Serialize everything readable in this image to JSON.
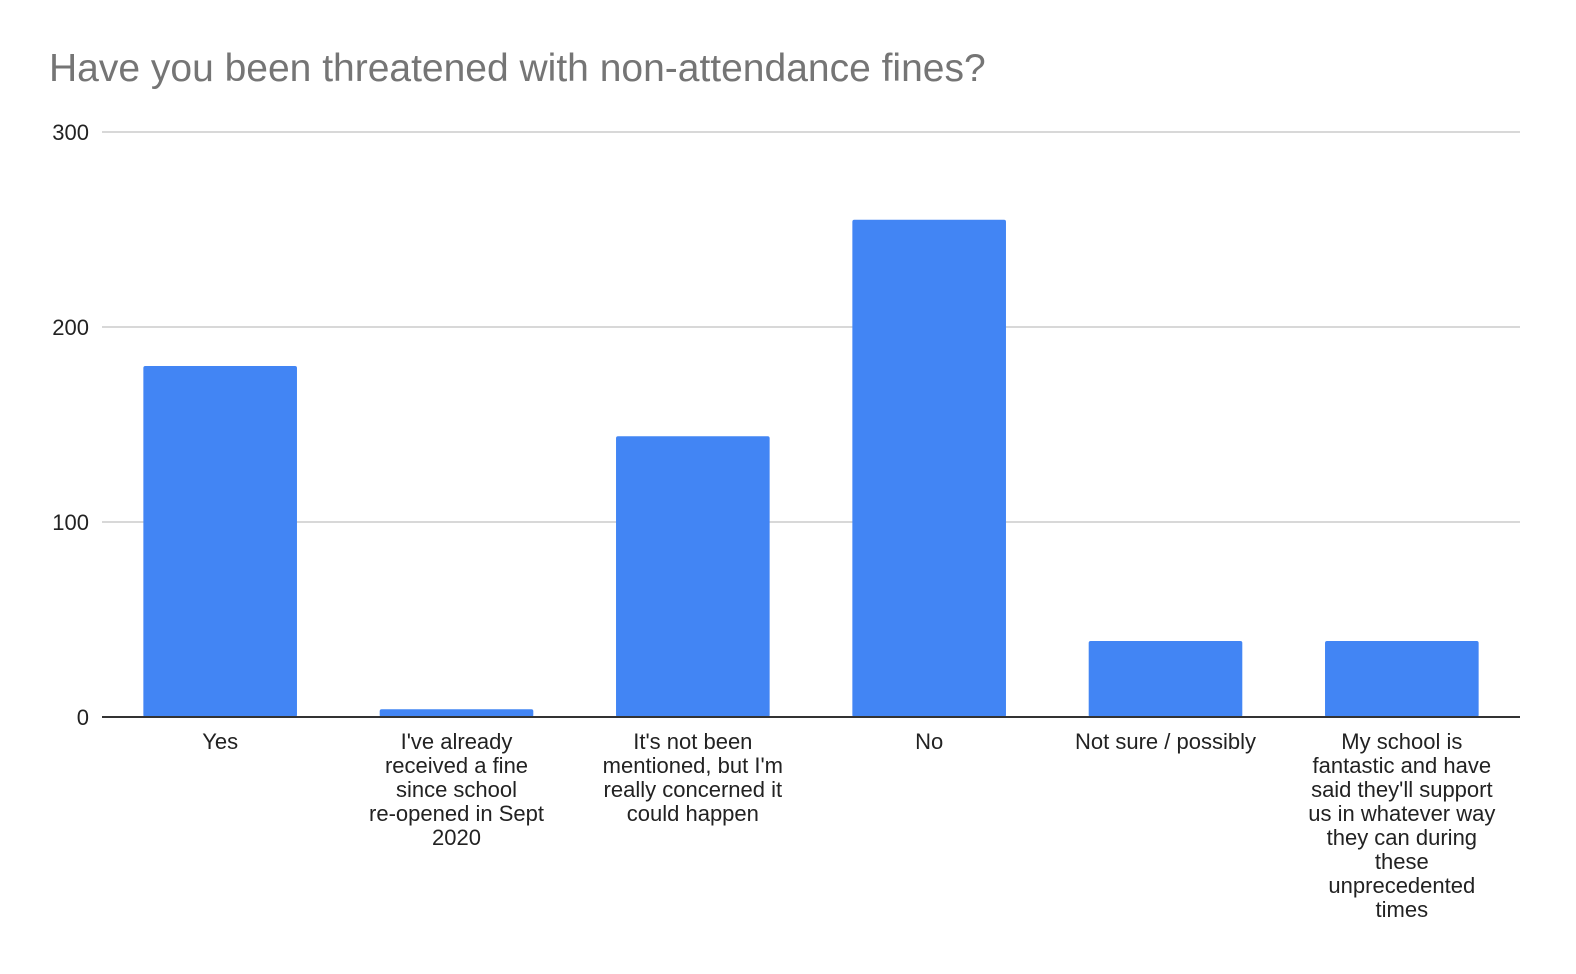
{
  "chart_data": {
    "type": "bar",
    "title": "Have you been threatened with non-attendance fines?",
    "xlabel": "",
    "ylabel": "",
    "categories": [
      "Yes",
      "I've already received a fine since school re-opened in Sept 2020",
      "It's not been mentioned, but I'm really concerned it could happen",
      "No",
      "Not sure / possibly",
      "My school is fantastic and have said they'll support us in whatever way they can during these unprecedented times"
    ],
    "category_label_lines": [
      [
        "Yes"
      ],
      [
        "I've already",
        "received a fine",
        "since school",
        "re-opened in Sept",
        "2020"
      ],
      [
        "It's not been",
        "mentioned, but I'm",
        "really concerned it",
        "could happen"
      ],
      [
        "No"
      ],
      [
        "Not sure / possibly"
      ],
      [
        "My school is",
        "fantastic and have",
        "said they'll support",
        "us in whatever way",
        "they can during",
        "these",
        "unprecedented",
        "times"
      ]
    ],
    "values": [
      180,
      4,
      144,
      255,
      39,
      39
    ],
    "ylim": [
      0,
      300
    ],
    "yticks": [
      0,
      100,
      200,
      300
    ],
    "grid": true,
    "legend": "none",
    "bar_color": "#4285f4"
  }
}
